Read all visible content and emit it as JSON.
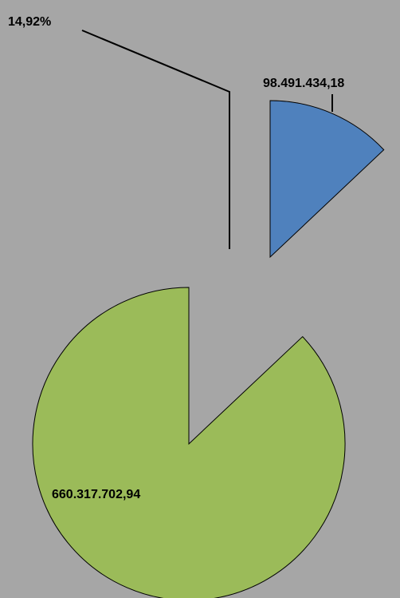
{
  "chart_data": {
    "type": "pie",
    "annotation": "14,92%",
    "values": [
      98491434.18,
      660317702.94
    ],
    "value_labels": [
      "98.491.434,18",
      "660.317.702,94"
    ],
    "colors": [
      "#4f81bd",
      "#9bbb59"
    ]
  }
}
